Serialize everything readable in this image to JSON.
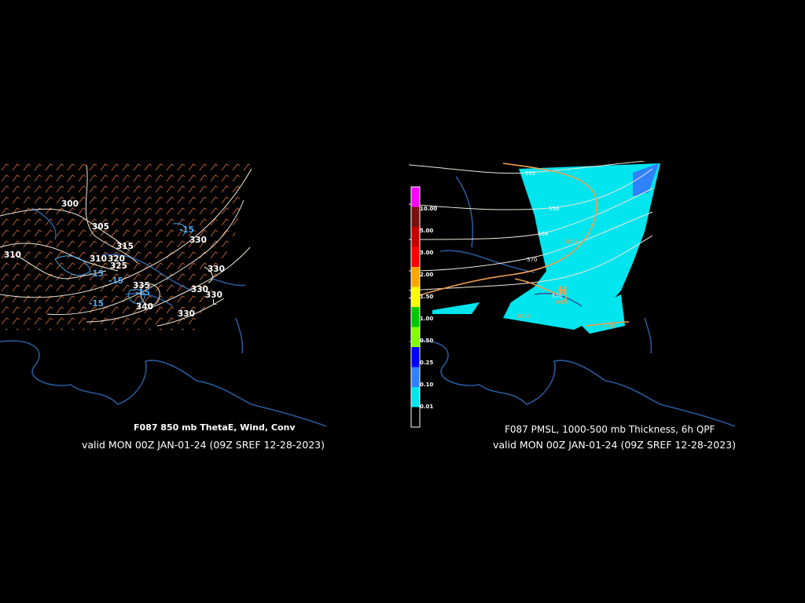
{
  "left_panel": {
    "title": "F087 850 mb ThetaE, Wind, Conv",
    "valid": "valid MON 00Z JAN-01-24 (09Z SREF 12-28-2023)",
    "contour_labels": [
      "300",
      "305",
      "310",
      "310",
      "315",
      "320",
      "325",
      "330",
      "335",
      "340",
      "330",
      "330",
      "330",
      "330"
    ],
    "conv_labels": [
      "-15",
      "-15",
      "-15",
      "-15",
      "-15"
    ],
    "marker": "L"
  },
  "right_panel": {
    "title": "F087 PMSL, 1000-500 mb Thickness, 6h QPF",
    "valid": "valid MON 00Z JAN-01-24 (09Z SREF 12-28-2023)",
    "thickness_labels": [
      "552",
      "558",
      "564",
      "570",
      "576"
    ],
    "pressure_labels": [
      "1018",
      "1021",
      "1018",
      "1018"
    ],
    "marker": "H",
    "legend": {
      "values": [
        "10.00",
        "5.00",
        "3.00",
        "2.00",
        "1.50",
        "1.00",
        "0.50",
        "0.25",
        "0.10",
        "0.01"
      ],
      "colors": [
        "#ff00ff",
        "#7a0f0f",
        "#c40000",
        "#ff0000",
        "#ffa500",
        "#ffff00",
        "#00c800",
        "#80ff00",
        "#0000ff",
        "#3080ff",
        "#00e5ee",
        "#000000"
      ]
    }
  },
  "colors": {
    "background": "#000000",
    "coast": "#2a5a9a",
    "wind_barbs": "#c06030",
    "contours": "#f0e8d8",
    "conv": "#4aa8e8",
    "qpf_light": "#00e5ee",
    "qpf_moderate": "#3080ff",
    "isobar": "#f0a050"
  }
}
